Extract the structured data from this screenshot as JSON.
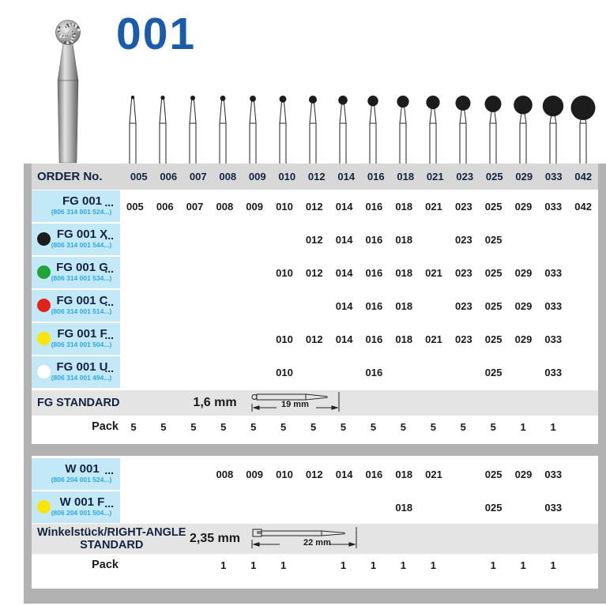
{
  "colors": {
    "title_blue": "#1a5cab",
    "navy": "#13233f",
    "code_blue": "#2ea8e0",
    "label_bg": "#c3e8f8",
    "header_bg": "#d8d8d8",
    "band_bg": "#e4e4e4",
    "frame_gray": "#b2b2b2",
    "value_ink": "#1a1a1a",
    "dot_black": "#1c1c1c",
    "dot_green": "#1fa43a",
    "dot_red": "#e32219",
    "dot_yellow": "#fbe603",
    "dot_white": "#ffffff"
  },
  "page": {
    "title": "001"
  },
  "table": {
    "header_label": "ORDER No.",
    "columns": [
      "005",
      "006",
      "007",
      "008",
      "009",
      "010",
      "012",
      "014",
      "016",
      "018",
      "021",
      "023",
      "025",
      "029",
      "033",
      "042"
    ],
    "fg_rows": [
      {
        "name": "FG 001",
        "ellipsis": "...",
        "code": "(806 314 001 524...)",
        "dot": null,
        "sizes": [
          "005",
          "006",
          "007",
          "008",
          "009",
          "010",
          "012",
          "014",
          "016",
          "018",
          "021",
          "023",
          "025",
          "029",
          "033",
          "042"
        ]
      },
      {
        "name": "FG 001 X",
        "ellipsis": "...",
        "code": "(806 314 001 544...)",
        "dot": "#1c1c1c",
        "sizes": [
          "012",
          "014",
          "016",
          "018",
          "023",
          "025"
        ]
      },
      {
        "name": "FG 001 G",
        "ellipsis": "...",
        "code": "(806 314 001 534...)",
        "dot": "#1fa43a",
        "sizes": [
          "010",
          "012",
          "014",
          "016",
          "018",
          "021",
          "023",
          "025",
          "029",
          "033"
        ]
      },
      {
        "name": "FG 001 C",
        "ellipsis": "...",
        "code": "(806 314 001 514...)",
        "dot": "#e32219",
        "sizes": [
          "014",
          "016",
          "018",
          "023",
          "025",
          "029",
          "033"
        ]
      },
      {
        "name": "FG 001 F",
        "ellipsis": "...",
        "code": "(806 314 001 504...)",
        "dot": "#fbe603",
        "sizes": [
          "010",
          "012",
          "014",
          "016",
          "018",
          "021",
          "023",
          "025",
          "029",
          "033"
        ]
      },
      {
        "name": "FG 001 U",
        "ellipsis": "...",
        "code": "(806 314 001 494...)",
        "dot": "#ffffff",
        "sizes": [
          "010",
          "016",
          "025",
          "033"
        ]
      }
    ],
    "fg_standard": {
      "label": "FG STANDARD",
      "shank_diameter": "1,6 mm",
      "shank_length": "19 mm"
    },
    "fg_pack": {
      "label": "Pack",
      "values": [
        "5",
        "5",
        "5",
        "5",
        "5",
        "5",
        "5",
        "5",
        "5",
        "5",
        "5",
        "5",
        "5",
        "1",
        "1",
        ""
      ]
    },
    "w_rows": [
      {
        "name": "W 001",
        "ellipsis": "...",
        "code": "(806 204 001 524...)",
        "dot": null,
        "sizes": [
          "008",
          "009",
          "010",
          "012",
          "014",
          "016",
          "018",
          "021",
          "025",
          "029",
          "033"
        ]
      },
      {
        "name": "W 001 F",
        "ellipsis": "...",
        "code": "(806 204 001 504...)",
        "dot": "#fbe603",
        "sizes": [
          "018",
          "025",
          "033"
        ]
      }
    ],
    "w_standard": {
      "label_line1": "Winkelstück/RIGHT-ANGLE",
      "label_line2": "STANDARD",
      "shank_diameter": "2,35 mm",
      "shank_length": "22 mm"
    },
    "w_pack": {
      "label": "Pack",
      "values": [
        "",
        "",
        "",
        "1",
        "1",
        "1",
        "",
        "1",
        "1",
        "1",
        "1",
        "",
        "1",
        "1",
        "1",
        ""
      ]
    }
  },
  "illustrations": {
    "product_photo": "diamond-ball-bur-photo",
    "bur_ball_radii": [
      2.2,
      2.6,
      3,
      3.4,
      3.9,
      4.4,
      5,
      5.8,
      6.7,
      7.6,
      8.6,
      9.5,
      10.5,
      11.8,
      13.2,
      15.5
    ]
  }
}
